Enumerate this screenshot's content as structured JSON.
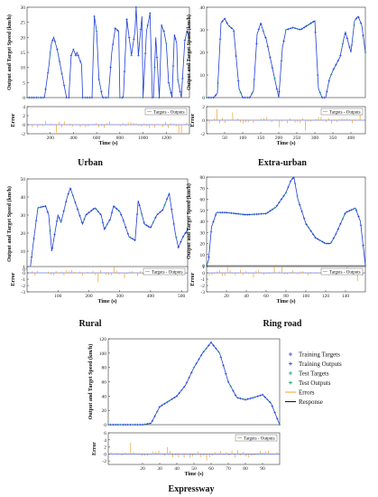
{
  "legend": {
    "items": [
      "Training Targets",
      "Training Outputs",
      "Test Targets",
      "Test Outputs",
      "Errors",
      "Response"
    ],
    "colors": [
      "#1f3fd6",
      "#1f3fd6",
      "#00a05a",
      "#00a05a",
      "#f0a020",
      "#111111"
    ],
    "error_box_text": "Targets - Outputs"
  },
  "common": {
    "ylabel_speed": "Output and Target Speed (km/h)",
    "ylabel_error": "Error",
    "speed_color": "#1f3fd6",
    "test_color": "#00a05a",
    "error_color": "#f0a020"
  },
  "chart_data": [
    {
      "id": "urban",
      "type": "line",
      "caption": "Urban",
      "xlabel": "Time (s)",
      "xlim": [
        0,
        1400
      ],
      "ylim": [
        0,
        30
      ],
      "yticks": [
        0,
        5,
        10,
        15,
        20,
        25,
        30
      ],
      "xticks": [
        200,
        400,
        600,
        800,
        1000,
        1200
      ],
      "err_ylim": [
        -2,
        4
      ],
      "err_yticks": [
        -2,
        0,
        2,
        4
      ],
      "x": [
        0,
        150,
        190,
        200,
        210,
        230,
        260,
        280,
        340,
        360,
        380,
        400,
        420,
        430,
        470,
        480,
        510,
        560,
        580,
        600,
        620,
        650,
        700,
        730,
        760,
        790,
        800,
        830,
        860,
        900,
        930,
        940,
        960,
        990,
        1000,
        1030,
        1060,
        1080,
        1090,
        1110,
        1140,
        1160,
        1180,
        1200,
        1220,
        1250,
        1270,
        1290,
        1300,
        1330,
        1360,
        1380,
        1400
      ],
      "y": [
        0,
        0,
        11,
        15,
        18,
        20,
        16,
        12,
        0,
        0,
        14,
        16,
        14,
        15,
        11,
        0,
        0,
        0,
        27,
        22,
        6,
        0,
        0,
        15,
        23,
        22,
        0,
        0,
        26,
        14,
        22,
        30,
        14,
        27,
        0,
        22,
        28,
        0,
        0,
        20,
        0,
        24,
        22,
        18,
        5,
        0,
        21,
        18,
        6,
        0,
        19,
        22,
        20
      ]
    },
    {
      "id": "extra-urban",
      "type": "line",
      "caption": "Extra-urban",
      "xlabel": "Time (s)",
      "xlim": [
        0,
        440
      ],
      "ylim": [
        0,
        40
      ],
      "yticks": [
        0,
        10,
        20,
        30,
        40
      ],
      "xticks": [
        50,
        100,
        150,
        200,
        250,
        300,
        350,
        400
      ],
      "err_ylim": [
        -2,
        2
      ],
      "err_yticks": [
        -2,
        0,
        2
      ],
      "x": [
        0,
        10,
        20,
        30,
        40,
        50,
        60,
        75,
        90,
        100,
        110,
        120,
        130,
        140,
        150,
        160,
        165,
        200,
        210,
        220,
        240,
        260,
        280,
        300,
        310,
        320,
        330,
        340,
        350,
        360,
        370,
        380,
        385,
        400,
        410,
        420,
        430,
        440
      ],
      "y": [
        0,
        0,
        0,
        2,
        33,
        35,
        32,
        30,
        4,
        0,
        0,
        0,
        3,
        28,
        33,
        28,
        26,
        0,
        22,
        30,
        31,
        30,
        32,
        34,
        4,
        0,
        0,
        8,
        12,
        15,
        18,
        26,
        29,
        20,
        34,
        36,
        32,
        20
      ]
    },
    {
      "id": "rural",
      "type": "line",
      "caption": "Rural",
      "xlabel": "Time (s)",
      "xlim": [
        0,
        520
      ],
      "ylim": [
        0,
        50
      ],
      "yticks": [
        0,
        10,
        20,
        30,
        40,
        50
      ],
      "xticks": [
        100,
        200,
        300,
        400,
        500
      ],
      "err_ylim": [
        -3,
        1
      ],
      "err_yticks": [
        -3,
        -2,
        -1,
        0,
        1
      ],
      "x": [
        0,
        10,
        20,
        35,
        60,
        70,
        80,
        100,
        110,
        130,
        140,
        160,
        180,
        190,
        220,
        240,
        250,
        270,
        280,
        300,
        310,
        330,
        350,
        360,
        380,
        400,
        420,
        440,
        460,
        480,
        490,
        505,
        520
      ],
      "y": [
        0,
        0,
        14,
        34,
        35,
        30,
        10,
        30,
        26,
        40,
        45,
        35,
        25,
        30,
        34,
        30,
        22,
        28,
        35,
        32,
        28,
        18,
        16,
        38,
        25,
        23,
        30,
        33,
        42,
        20,
        12,
        18,
        22
      ]
    },
    {
      "id": "ring-road",
      "type": "line",
      "caption": "Ring road",
      "xlabel": "Time (s)",
      "xlim": [
        0,
        160
      ],
      "ylim": [
        0,
        80
      ],
      "yticks": [
        0,
        10,
        20,
        30,
        40,
        50,
        60,
        70,
        80
      ],
      "xticks": [
        20,
        40,
        60,
        80,
        100,
        120,
        140
      ],
      "err_ylim": [
        -3,
        1
      ],
      "err_yticks": [
        -3,
        -2,
        -1,
        0,
        1
      ],
      "x": [
        0,
        2,
        5,
        10,
        20,
        40,
        60,
        70,
        80,
        85,
        88,
        92,
        100,
        110,
        120,
        125,
        130,
        140,
        150,
        155,
        160
      ],
      "y": [
        0,
        5,
        35,
        48,
        48,
        46,
        47,
        53,
        66,
        77,
        80,
        60,
        38,
        25,
        20,
        20,
        28,
        48,
        52,
        40,
        0
      ]
    },
    {
      "id": "expressway",
      "type": "line",
      "caption": "Expressway",
      "xlabel": "Time (s)",
      "xlim": [
        0,
        100
      ],
      "ylim": [
        0,
        120
      ],
      "yticks": [
        0,
        20,
        40,
        60,
        80,
        100,
        120
      ],
      "xticks": [
        20,
        30,
        40,
        50,
        60,
        70,
        80,
        90
      ],
      "err_ylim": [
        -3,
        6
      ],
      "err_yticks": [
        -2,
        0,
        2,
        4,
        6
      ],
      "x": [
        0,
        10,
        20,
        25,
        30,
        40,
        45,
        50,
        55,
        60,
        65,
        70,
        75,
        80,
        85,
        90,
        95,
        100
      ],
      "y": [
        0,
        0,
        0,
        2,
        25,
        40,
        55,
        80,
        100,
        115,
        100,
        60,
        38,
        35,
        38,
        42,
        30,
        0
      ]
    }
  ]
}
